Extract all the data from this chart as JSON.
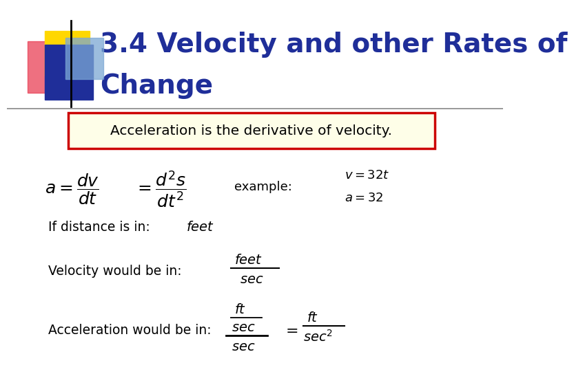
{
  "title_line1": "3.4 Velocity and other Rates of",
  "title_line2": "Change",
  "title_color": "#1F2E99",
  "title_fontsize": 28,
  "bg_color": "#FFFFFF",
  "accent_yellow": "#FFD700",
  "accent_red": "#E8334A",
  "accent_blue": "#1F2E99",
  "accent_lblue": "#7BA7D4",
  "box_text": "Acceleration is the derivative of velocity.",
  "box_bg": "#FEFEE8",
  "box_edge": "#CC0000",
  "body_fontsize": 15,
  "math_fontsize": 15
}
